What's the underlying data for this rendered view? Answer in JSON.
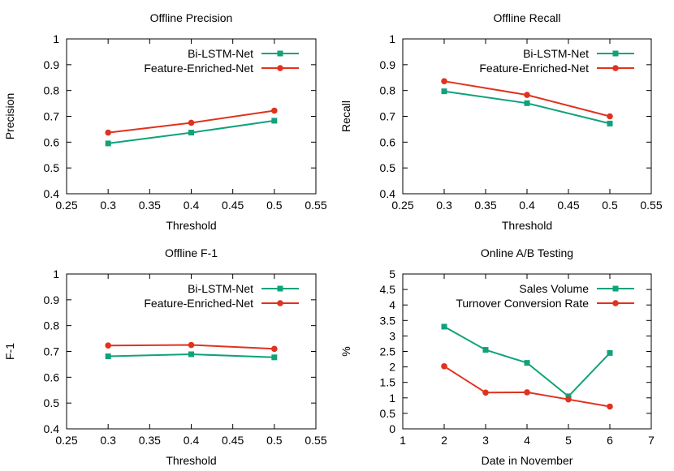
{
  "colors": {
    "green": "#10a27a",
    "red": "#e0321e"
  },
  "chart_data": [
    {
      "type": "line",
      "title": "Offline Precision",
      "xlabel": "Threshold",
      "ylabel": "Precision",
      "xlim": [
        0.25,
        0.55
      ],
      "ylim": [
        0.4,
        1.0
      ],
      "xticks": [
        "0.25",
        "0.3",
        "0.35",
        "0.4",
        "0.45",
        "0.5",
        "0.55"
      ],
      "yticks": [
        "0.4",
        "0.5",
        "0.6",
        "0.7",
        "0.8",
        "0.9",
        "1"
      ],
      "legend": "top-right",
      "x": [
        0.3,
        0.4,
        0.5
      ],
      "series": [
        {
          "name": "Bi-LSTM-Net",
          "marker": "square",
          "color": "#10a27a",
          "values": [
            0.595,
            0.637,
            0.683
          ]
        },
        {
          "name": "Feature-Enriched-Net",
          "marker": "circle",
          "color": "#e0321e",
          "values": [
            0.637,
            0.675,
            0.722
          ]
        }
      ]
    },
    {
      "type": "line",
      "title": "Offline Recall",
      "xlabel": "Threshold",
      "ylabel": "Recall",
      "xlim": [
        0.25,
        0.55
      ],
      "ylim": [
        0.4,
        1.0
      ],
      "xticks": [
        "0.25",
        "0.3",
        "0.35",
        "0.4",
        "0.45",
        "0.5",
        "0.55"
      ],
      "yticks": [
        "0.4",
        "0.5",
        "0.6",
        "0.7",
        "0.8",
        "0.9",
        "1"
      ],
      "legend": "top-right",
      "x": [
        0.3,
        0.4,
        0.5
      ],
      "series": [
        {
          "name": "Bi-LSTM-Net",
          "marker": "square",
          "color": "#10a27a",
          "values": [
            0.797,
            0.751,
            0.672
          ]
        },
        {
          "name": "Feature-Enriched-Net",
          "marker": "circle",
          "color": "#e0321e",
          "values": [
            0.836,
            0.783,
            0.7
          ]
        }
      ]
    },
    {
      "type": "line",
      "title": "Offline F-1",
      "xlabel": "Threshold",
      "ylabel": "F-1",
      "xlim": [
        0.25,
        0.55
      ],
      "ylim": [
        0.4,
        1.0
      ],
      "xticks": [
        "0.25",
        "0.3",
        "0.35",
        "0.4",
        "0.45",
        "0.5",
        "0.55"
      ],
      "yticks": [
        "0.4",
        "0.5",
        "0.6",
        "0.7",
        "0.8",
        "0.9",
        "1"
      ],
      "legend": "top-right",
      "x": [
        0.3,
        0.4,
        0.5
      ],
      "series": [
        {
          "name": "Bi-LSTM-Net",
          "marker": "square",
          "color": "#10a27a",
          "values": [
            0.681,
            0.689,
            0.677
          ]
        },
        {
          "name": "Feature-Enriched-Net",
          "marker": "circle",
          "color": "#e0321e",
          "values": [
            0.723,
            0.725,
            0.71
          ]
        }
      ]
    },
    {
      "type": "line",
      "title": "Online A/B Testing",
      "xlabel": "Date in November",
      "ylabel": "%",
      "xlim": [
        1,
        7
      ],
      "ylim": [
        0,
        5
      ],
      "xticks": [
        "1",
        "2",
        "3",
        "4",
        "5",
        "6",
        "7"
      ],
      "yticks": [
        "0",
        "0.5",
        "1",
        "1.5",
        "2",
        "2.5",
        "3",
        "3.5",
        "4",
        "4.5",
        "5"
      ],
      "legend": "top-right",
      "x": [
        2,
        3,
        4,
        5,
        6
      ],
      "series": [
        {
          "name": "Sales Volume",
          "marker": "square",
          "color": "#10a27a",
          "values": [
            3.3,
            2.55,
            2.13,
            1.05,
            2.45
          ]
        },
        {
          "name": "Turnover Conversion Rate",
          "marker": "circle",
          "color": "#e0321e",
          "values": [
            2.02,
            1.17,
            1.18,
            0.95,
            0.72
          ]
        }
      ]
    }
  ]
}
